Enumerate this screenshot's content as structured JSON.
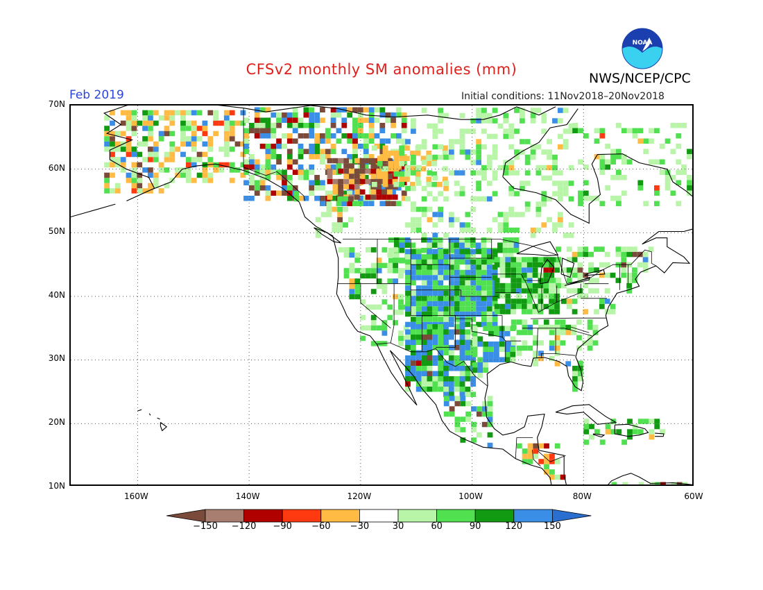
{
  "title": "CFSv2 monthly SM anomalies (mm)",
  "month": "Feb 2019",
  "initial_conditions": "Initial conditions: 11Nov2018–20Nov2018",
  "agency": "NWS/NCEP/CPC",
  "logo_text": "NOAA",
  "map": {
    "lon_range": [
      -172,
      -60
    ],
    "lat_range": [
      10,
      70
    ],
    "lat_labels": [
      "70N",
      "60N",
      "50N",
      "40N",
      "30N",
      "20N",
      "10N"
    ],
    "lon_labels": [
      "160W",
      "140W",
      "120W",
      "100W",
      "80W",
      "60W"
    ]
  },
  "legend": {
    "labels": [
      "−150",
      "−120",
      "−90",
      "−60",
      "−30",
      "30",
      "60",
      "90",
      "120",
      "150"
    ],
    "colors": [
      "#7a4a3a",
      "#a87e70",
      "#b00000",
      "#ff3a10",
      "#ffbb44",
      "#ffffff",
      "#b8f5a8",
      "#50e050",
      "#129a12",
      "#3a8ee6",
      "#2a6ed0"
    ]
  },
  "colors": {
    "title": "#e0201b",
    "month": "#2b45d8",
    "noaa_blue": "#1b3fae",
    "noaa_cyan": "#3ad0f0"
  }
}
